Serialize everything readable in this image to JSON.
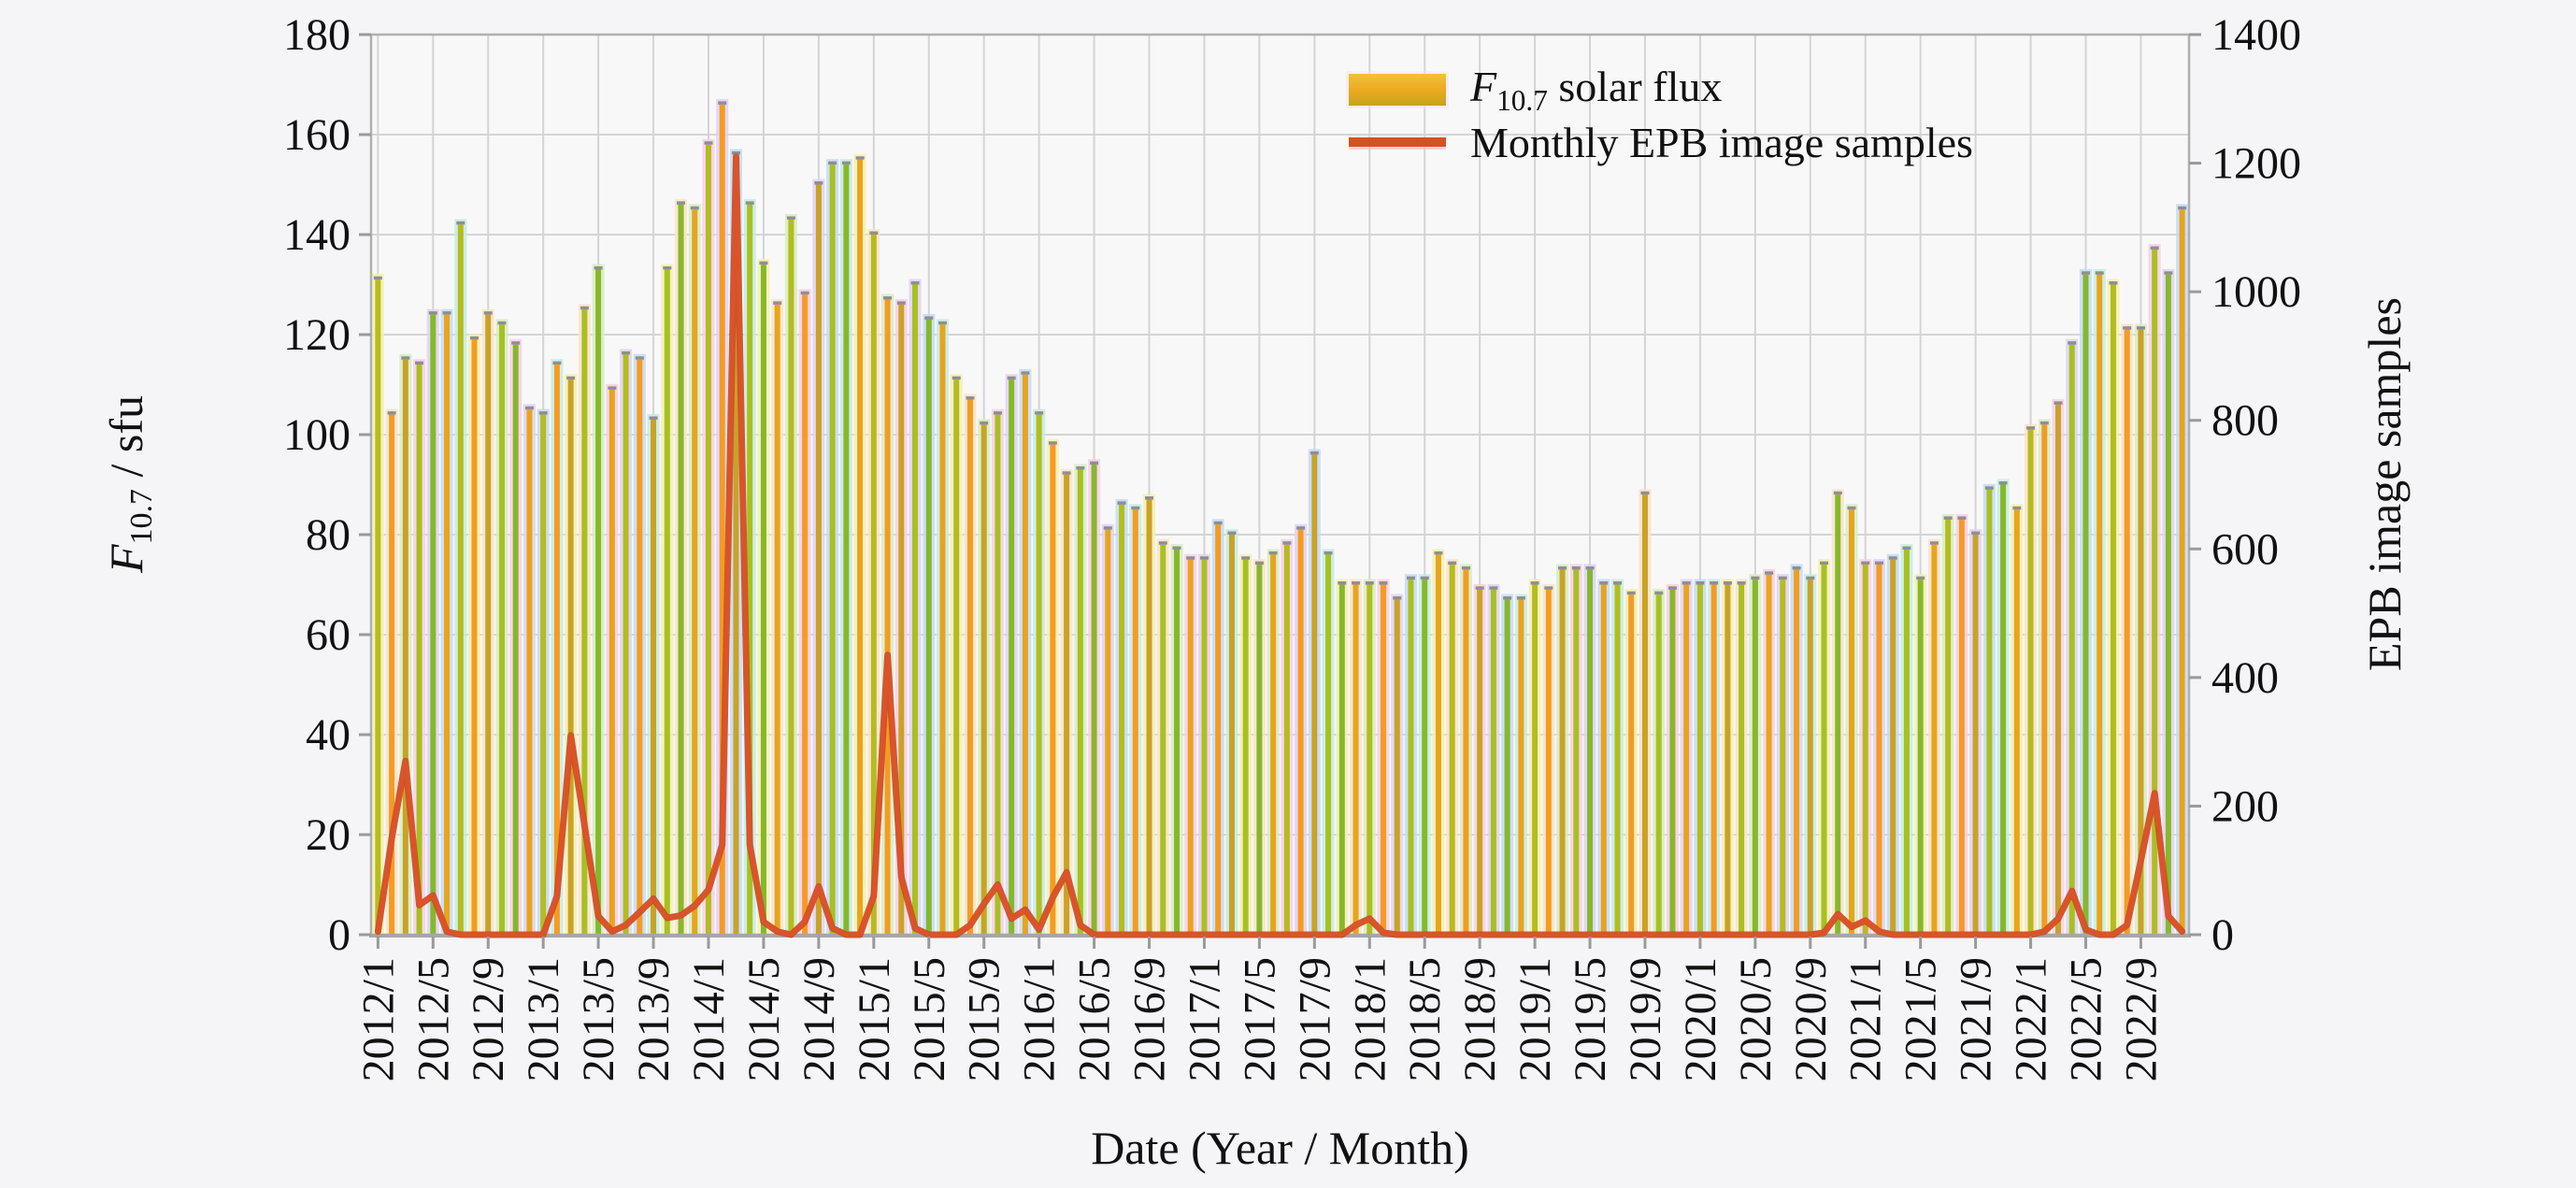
{
  "figure": {
    "background": "#f5f4f6",
    "plot_background": "#f9f8f9",
    "grid_color": "#d4d4d4",
    "axis_color": "#b0b0b0",
    "tick_text_color": "#111111"
  },
  "legend": {
    "item1": {
      "symbol": "F",
      "subscript": "10.7",
      "rest": " solar flux"
    },
    "item2": {
      "label": "Monthly EPB image samples"
    }
  },
  "chart_data": {
    "type": "bar",
    "title": "",
    "xlabel": "Date (Year / Month)",
    "ylabel_left": {
      "symbol": "F",
      "subscript": "10.7",
      "rest": " / sfu"
    },
    "ylabel_right": "EPB image samples",
    "left_axis": {
      "min": 0,
      "max": 180,
      "tick_step": 20,
      "tick_labels": [
        "0",
        "20",
        "40",
        "60",
        "80",
        "100",
        "120",
        "140",
        "160",
        "180"
      ]
    },
    "right_axis": {
      "min": 0,
      "max": 1400,
      "tick_step": 200,
      "tick_labels": [
        "0",
        "200",
        "400",
        "600",
        "800",
        "1000",
        "1200",
        "1400"
      ]
    },
    "x_tick_labels": [
      "2012/1",
      "2012/5",
      "2012/9",
      "2013/1",
      "2013/5",
      "2013/9",
      "2014/1",
      "2014/5",
      "2014/9",
      "2015/1",
      "2015/5",
      "2015/9",
      "2016/1",
      "2016/5",
      "2016/9",
      "2017/1",
      "2017/5",
      "2017/9",
      "2018/1",
      "2018/5",
      "2018/9",
      "2019/1",
      "2019/5",
      "2019/9",
      "2020/1",
      "2020/5",
      "2020/9",
      "2021/1",
      "2021/5",
      "2021/9",
      "2022/1",
      "2022/5",
      "2022/9"
    ],
    "x_tick_month_indices": [
      0,
      4,
      8,
      12,
      16,
      20,
      24,
      28,
      32,
      36,
      40,
      44,
      48,
      52,
      56,
      60,
      64,
      68,
      72,
      76,
      80,
      84,
      88,
      92,
      96,
      100,
      104,
      108,
      112,
      116,
      120,
      124,
      128
    ],
    "months": [
      "2012/1",
      "2012/2",
      "2012/3",
      "2012/4",
      "2012/5",
      "2012/6",
      "2012/7",
      "2012/8",
      "2012/9",
      "2012/10",
      "2012/11",
      "2012/12",
      "2013/1",
      "2013/2",
      "2013/3",
      "2013/4",
      "2013/5",
      "2013/6",
      "2013/7",
      "2013/8",
      "2013/9",
      "2013/10",
      "2013/11",
      "2013/12",
      "2014/1",
      "2014/2",
      "2014/3",
      "2014/4",
      "2014/5",
      "2014/6",
      "2014/7",
      "2014/8",
      "2014/9",
      "2014/10",
      "2014/11",
      "2014/12",
      "2015/1",
      "2015/2",
      "2015/3",
      "2015/4",
      "2015/5",
      "2015/6",
      "2015/7",
      "2015/8",
      "2015/9",
      "2015/10",
      "2015/11",
      "2015/12",
      "2016/1",
      "2016/2",
      "2016/3",
      "2016/4",
      "2016/5",
      "2016/6",
      "2016/7",
      "2016/8",
      "2016/9",
      "2016/10",
      "2016/11",
      "2016/12",
      "2017/1",
      "2017/2",
      "2017/3",
      "2017/4",
      "2017/5",
      "2017/6",
      "2017/7",
      "2017/8",
      "2017/9",
      "2017/10",
      "2017/11",
      "2017/12",
      "2018/1",
      "2018/2",
      "2018/3",
      "2018/4",
      "2018/5",
      "2018/6",
      "2018/7",
      "2018/8",
      "2018/9",
      "2018/10",
      "2018/11",
      "2018/12",
      "2019/1",
      "2019/2",
      "2019/3",
      "2019/4",
      "2019/5",
      "2019/6",
      "2019/7",
      "2019/8",
      "2019/9",
      "2019/10",
      "2019/11",
      "2019/12",
      "2020/1",
      "2020/2",
      "2020/3",
      "2020/4",
      "2020/5",
      "2020/6",
      "2020/7",
      "2020/8",
      "2020/9",
      "2020/10",
      "2020/11",
      "2020/12",
      "2021/1",
      "2021/2",
      "2021/3",
      "2021/4",
      "2021/5",
      "2021/6",
      "2021/7",
      "2021/8",
      "2021/9",
      "2021/10",
      "2021/11",
      "2021/12",
      "2022/1",
      "2022/2",
      "2022/3",
      "2022/4",
      "2022/5",
      "2022/6",
      "2022/7",
      "2022/8",
      "2022/9",
      "2022/10",
      "2022/11",
      "2022/12"
    ],
    "series": [
      {
        "name": "F10.7 solar flux",
        "type": "bar",
        "axis": "left",
        "core_palette": [
          "#f59b22",
          "#c9a227",
          "#a8c020",
          "#86b82a",
          "#e8a41c",
          "#b4bc1e"
        ],
        "band_palette": [
          "#f9cfe8",
          "#c3dcf5",
          "#f4f0b0",
          "#d6edc2",
          "#ded3f2",
          "#c6ece2",
          "#fbe3c8"
        ],
        "cap_color": "#8f8f8f",
        "values": [
          131,
          104,
          115,
          114,
          124,
          124,
          142,
          119,
          124,
          122,
          118,
          105,
          104,
          114,
          111,
          125,
          133,
          109,
          116,
          115,
          103,
          133,
          146,
          145,
          158,
          166,
          156,
          146,
          134,
          126,
          143,
          128,
          150,
          154,
          154,
          155,
          140,
          127,
          126,
          130,
          123,
          122,
          111,
          107,
          102,
          104,
          111,
          112,
          104,
          98,
          92,
          93,
          94,
          81,
          86,
          85,
          87,
          78,
          77,
          75,
          75,
          82,
          80,
          75,
          74,
          76,
          78,
          81,
          96,
          76,
          70,
          70,
          70,
          70,
          67,
          71,
          71,
          76,
          74,
          73,
          69,
          69,
          67,
          67,
          70,
          69,
          73,
          73,
          73,
          70,
          70,
          68,
          88,
          68,
          69,
          70,
          70,
          70,
          70,
          70,
          71,
          72,
          71,
          73,
          71,
          74,
          88,
          85,
          74,
          74,
          75,
          77,
          71,
          78,
          83,
          83,
          80,
          89,
          90,
          85,
          101,
          102,
          106,
          118,
          132,
          132,
          130,
          121,
          121,
          137,
          132,
          145
        ]
      },
      {
        "name": "Monthly EPB image samples",
        "type": "line",
        "axis": "right",
        "color": "#dc5329",
        "edge_color": "#c84b24",
        "values": [
          5,
          150,
          270,
          46,
          61,
          5,
          0,
          0,
          0,
          0,
          0,
          0,
          0,
          60,
          310,
          170,
          29,
          5,
          15,
          35,
          56,
          26,
          30,
          45,
          70,
          140,
          1210,
          140,
          20,
          5,
          0,
          20,
          75,
          10,
          0,
          0,
          60,
          435,
          90,
          10,
          0,
          0,
          0,
          15,
          48,
          78,
          25,
          39,
          8,
          58,
          97,
          15,
          0,
          0,
          0,
          0,
          0,
          0,
          0,
          0,
          0,
          0,
          0,
          0,
          0,
          0,
          0,
          0,
          0,
          0,
          0,
          15,
          25,
          3,
          0,
          0,
          0,
          0,
          0,
          0,
          0,
          0,
          0,
          0,
          0,
          0,
          0,
          0,
          0,
          0,
          0,
          0,
          0,
          0,
          0,
          0,
          0,
          0,
          0,
          0,
          0,
          0,
          0,
          0,
          0,
          3,
          32,
          12,
          22,
          5,
          0,
          0,
          0,
          0,
          0,
          0,
          0,
          0,
          0,
          0,
          0,
          5,
          25,
          68,
          8,
          0,
          0,
          15,
          115,
          220,
          29,
          5
        ]
      }
    ],
    "grid": true,
    "legend_position": "top-center"
  }
}
